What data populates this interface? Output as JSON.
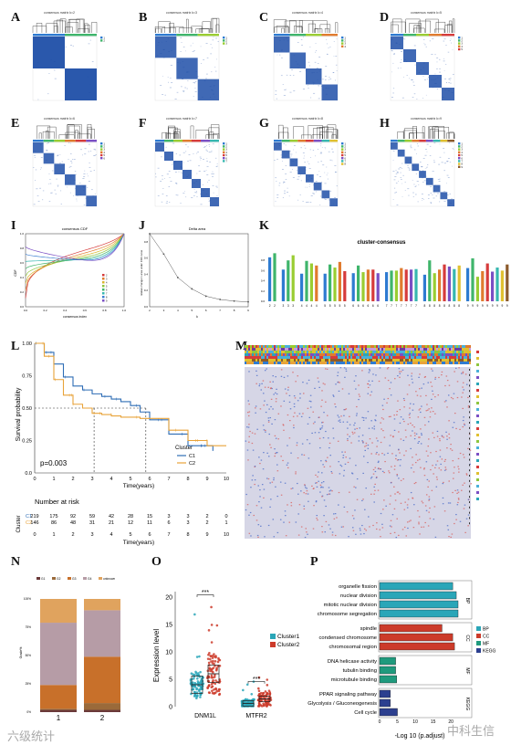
{
  "panels": {
    "A": {
      "letter": "A",
      "title": "consensus matrix k=2",
      "k": 2
    },
    "B": {
      "letter": "B",
      "title": "consensus matrix k=3",
      "k": 3
    },
    "C": {
      "letter": "C",
      "title": "consensus matrix k=4",
      "k": 4
    },
    "D": {
      "letter": "D",
      "title": "consensus matrix k=5",
      "k": 5
    },
    "E": {
      "letter": "E",
      "title": "consensus matrix k=6",
      "k": 6
    },
    "F": {
      "letter": "F",
      "title": "consensus matrix k=7",
      "k": 7
    },
    "G": {
      "letter": "G",
      "title": "consensus matrix k=8",
      "k": 8
    },
    "H": {
      "letter": "H",
      "title": "consensus matrix k=9",
      "k": 9
    },
    "I": {
      "letter": "I",
      "title": "consensus CDF",
      "xlabel": "consensus index",
      "ylabel": "CDF"
    },
    "J": {
      "letter": "J",
      "title": "Delta area",
      "xlabel": "k",
      "ylabel": "relative change in area under CDF curve"
    },
    "K": {
      "letter": "K",
      "title": "cluster-consensus"
    },
    "L": {
      "letter": "L",
      "ylabel": "Survival probability",
      "xlabel": "Time(years)",
      "legend_title": "Cluster",
      "pvalue": "p=0.003",
      "risk_title": "Number at risk",
      "risk_ylabel": "Cluster"
    },
    "M": {
      "letter": "M"
    },
    "N": {
      "letter": "N",
      "xlabel": "Cluster",
      "ylabel": "Grade%"
    },
    "O": {
      "letter": "O",
      "ylabel": "Expression level"
    },
    "P": {
      "letter": "P",
      "xlabel": "-Log 10 (p.adjust)"
    }
  },
  "palette": {
    "blue": "#1f4fa8",
    "c1": "#2f6db5",
    "c2": "#e8a33a",
    "teal": "#2aa6b8",
    "red": "#cc3b2a",
    "navy": "#2c3f8f",
    "green": "#1f9a7d"
  },
  "cdf_colors": [
    "#d63b3b",
    "#e07b2e",
    "#d9b62c",
    "#8ec63f",
    "#3fb56b",
    "#37b7b0",
    "#3b7fd1",
    "#7a4fc4"
  ],
  "chart_data": [
    {
      "id": "J",
      "type": "line",
      "title": "Delta area",
      "x": [
        2,
        3,
        4,
        5,
        6,
        7,
        8,
        9
      ],
      "y": [
        0.9,
        0.65,
        0.36,
        0.22,
        0.13,
        0.09,
        0.07,
        0.06
      ],
      "ylim": [
        0,
        0.9
      ],
      "xticks": [
        "2",
        "3",
        "4",
        "5",
        "6",
        "7",
        "8",
        "9"
      ],
      "yticks": [
        "0.0",
        "0.2",
        "0.4",
        "0.6",
        "0.8"
      ],
      "xlabel": "k",
      "ylabel": "relative change in area under CDF curve"
    },
    {
      "id": "K",
      "type": "bar",
      "title": "cluster-consensus",
      "groups": [
        {
          "k": "2",
          "labels": [
            "2",
            "2"
          ],
          "values": [
            0.86,
            0.94
          ]
        },
        {
          "k": "3",
          "labels": [
            "3",
            "3",
            "3"
          ],
          "values": [
            0.62,
            0.8,
            0.9
          ]
        },
        {
          "k": "4",
          "labels": [
            "4",
            "4",
            "4",
            "4"
          ],
          "values": [
            0.54,
            0.79,
            0.74,
            0.7
          ]
        },
        {
          "k": "5",
          "labels": [
            "5",
            "5",
            "5",
            "5",
            "5"
          ],
          "values": [
            0.54,
            0.72,
            0.66,
            0.77,
            0.59
          ]
        },
        {
          "k": "6",
          "labels": [
            "6",
            "6",
            "6",
            "6",
            "6",
            "6"
          ],
          "values": [
            0.55,
            0.7,
            0.57,
            0.62,
            0.62,
            0.55
          ]
        },
        {
          "k": "7",
          "labels": [
            "7",
            "7",
            "7",
            "7",
            "7",
            "7",
            "7"
          ],
          "values": [
            0.57,
            0.6,
            0.6,
            0.65,
            0.62,
            0.62,
            0.63
          ]
        },
        {
          "k": "8",
          "labels": [
            "8",
            "8",
            "8",
            "8",
            "8",
            "8",
            "8",
            "8"
          ],
          "values": [
            0.52,
            0.8,
            0.55,
            0.62,
            0.72,
            0.68,
            0.63,
            0.7
          ]
        },
        {
          "k": "9",
          "labels": [
            "9",
            "9",
            "9",
            "9",
            "9",
            "9",
            "9",
            "9",
            "9"
          ],
          "values": [
            0.65,
            0.84,
            0.48,
            0.59,
            0.74,
            0.58,
            0.66,
            0.6,
            0.72
          ]
        }
      ],
      "yticks": [
        "0.0",
        "0.2",
        "0.4",
        "0.6",
        "0.8"
      ],
      "ylim": [
        0,
        1.0
      ]
    },
    {
      "id": "L",
      "type": "line",
      "title": "",
      "xticks": [
        "0",
        "1",
        "2",
        "3",
        "4",
        "5",
        "6",
        "7",
        "8",
        "9",
        "10"
      ],
      "yticks": [
        "0.0",
        "0.25",
        "0.50",
        "0.75",
        "1.00"
      ],
      "series": [
        {
          "name": "C1",
          "x": [
            0,
            0.5,
            1,
            1.5,
            2,
            2.5,
            3,
            3.5,
            4,
            4.5,
            5,
            5.5,
            6,
            6.5,
            7,
            7.5,
            8,
            9,
            9.3
          ],
          "y": [
            1,
            0.93,
            0.84,
            0.74,
            0.67,
            0.64,
            0.61,
            0.59,
            0.57,
            0.55,
            0.52,
            0.47,
            0.41,
            0.41,
            0.3,
            0.3,
            0.21,
            0.21,
            0.17
          ]
        },
        {
          "name": "C2",
          "x": [
            0,
            0.5,
            1,
            1.5,
            2,
            2.5,
            3,
            3.5,
            4,
            4.5,
            5,
            5.5,
            6,
            7,
            8,
            9,
            10
          ],
          "y": [
            1,
            0.9,
            0.72,
            0.6,
            0.53,
            0.5,
            0.46,
            0.45,
            0.44,
            0.43,
            0.43,
            0.42,
            0.42,
            0.33,
            0.25,
            0.21,
            0.21
          ]
        }
      ],
      "hline": 0.5,
      "vlines": [
        3.1,
        5.8
      ],
      "risk": {
        "C1": [
          "219",
          "175",
          "92",
          "59",
          "42",
          "28",
          "15",
          "3",
          "3",
          "2",
          "0"
        ],
        "C2": [
          "146",
          "86",
          "48",
          "31",
          "21",
          "12",
          "11",
          "6",
          "3",
          "2",
          "1"
        ]
      }
    },
    {
      "id": "N",
      "type": "bar",
      "stacked": true,
      "categories": [
        "1",
        "2"
      ],
      "legend": [
        "G1",
        "G2",
        "G3",
        "G4",
        "unknown"
      ],
      "series": [
        {
          "name": "G1",
          "values": [
            0.02,
            0.02
          ]
        },
        {
          "name": "G2",
          "values": [
            0.01,
            0.06
          ]
        },
        {
          "name": "G3",
          "values": [
            0.21,
            0.41
          ]
        },
        {
          "name": "G4",
          "values": [
            0.55,
            0.41
          ]
        },
        {
          "name": "unknown",
          "values": [
            0.21,
            0.1
          ]
        }
      ],
      "yticks": [
        "0%",
        "25%",
        "50%",
        "75%",
        "100%"
      ]
    },
    {
      "id": "O",
      "type": "scatter",
      "categories": [
        "DNM1L",
        "MTFR2"
      ],
      "series": [
        {
          "name": "Cluster1"
        },
        {
          "name": "Cluster2"
        }
      ],
      "medians": [
        [
          4.0,
          6.0
        ],
        [
          0.6,
          1.4
        ]
      ],
      "yticks": [
        "0",
        "5",
        "10",
        "15",
        "20"
      ],
      "ylim": [
        0,
        21
      ],
      "sig": "***"
    },
    {
      "id": "P",
      "type": "bar",
      "categories": [
        "organelle fission",
        "nuclear division",
        "mitotic nuclear division",
        "chromosome segregation",
        "spindle",
        "condensed chromosome",
        "chromosomal region",
        "DNA helicase activity",
        "tubulin binding",
        "microtubule binding",
        "PPAR signaling pathway",
        "Glycolysis / Gluconeogenesis",
        "Cell cycle"
      ],
      "values": [
        20.5,
        21.5,
        22,
        22,
        17.5,
        20.5,
        21,
        4.5,
        4.5,
        4.8,
        3,
        3,
        5
      ],
      "groups": [
        "BP",
        "BP",
        "BP",
        "BP",
        "CC",
        "CC",
        "CC",
        "MF",
        "MF",
        "MF",
        "KEGG",
        "KEGG",
        "KEGG"
      ],
      "xticks": [
        "0",
        "5",
        "10",
        "15",
        "20"
      ],
      "legend": [
        "BP",
        "CC",
        "MF",
        "KEGG"
      ]
    }
  ],
  "legends": {
    "L": [
      "C1",
      "C2"
    ],
    "O": [
      "Cluster1",
      "Cluster2"
    ]
  },
  "watermark_left": "六级统计",
  "watermark_right": "中科生信"
}
